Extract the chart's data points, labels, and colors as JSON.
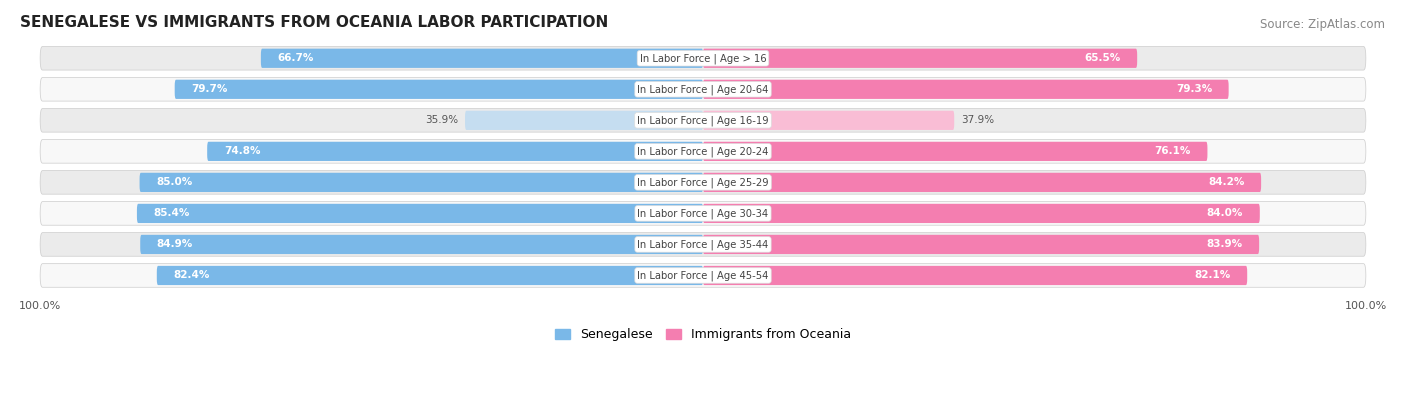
{
  "title": "SENEGALESE VS IMMIGRANTS FROM OCEANIA LABOR PARTICIPATION",
  "source": "Source: ZipAtlas.com",
  "categories": [
    "In Labor Force | Age > 16",
    "In Labor Force | Age 20-64",
    "In Labor Force | Age 16-19",
    "In Labor Force | Age 20-24",
    "In Labor Force | Age 25-29",
    "In Labor Force | Age 30-34",
    "In Labor Force | Age 35-44",
    "In Labor Force | Age 45-54"
  ],
  "senegalese": [
    66.7,
    79.7,
    35.9,
    74.8,
    85.0,
    85.4,
    84.9,
    82.4
  ],
  "oceania": [
    65.5,
    79.3,
    37.9,
    76.1,
    84.2,
    84.0,
    83.9,
    82.1
  ],
  "senegalese_color": "#7ab8e8",
  "senegalese_color_light": "#c5ddf0",
  "oceania_color": "#f47eb0",
  "oceania_color_light": "#f9bdd5",
  "row_bg_color": "#ebebeb",
  "row_bg_color2": "#f8f8f8",
  "title_fontsize": 11,
  "source_fontsize": 8.5,
  "bar_height": 0.62,
  "max_value": 100.0,
  "legend_labels": [
    "Senegalese",
    "Immigrants from Oceania"
  ]
}
